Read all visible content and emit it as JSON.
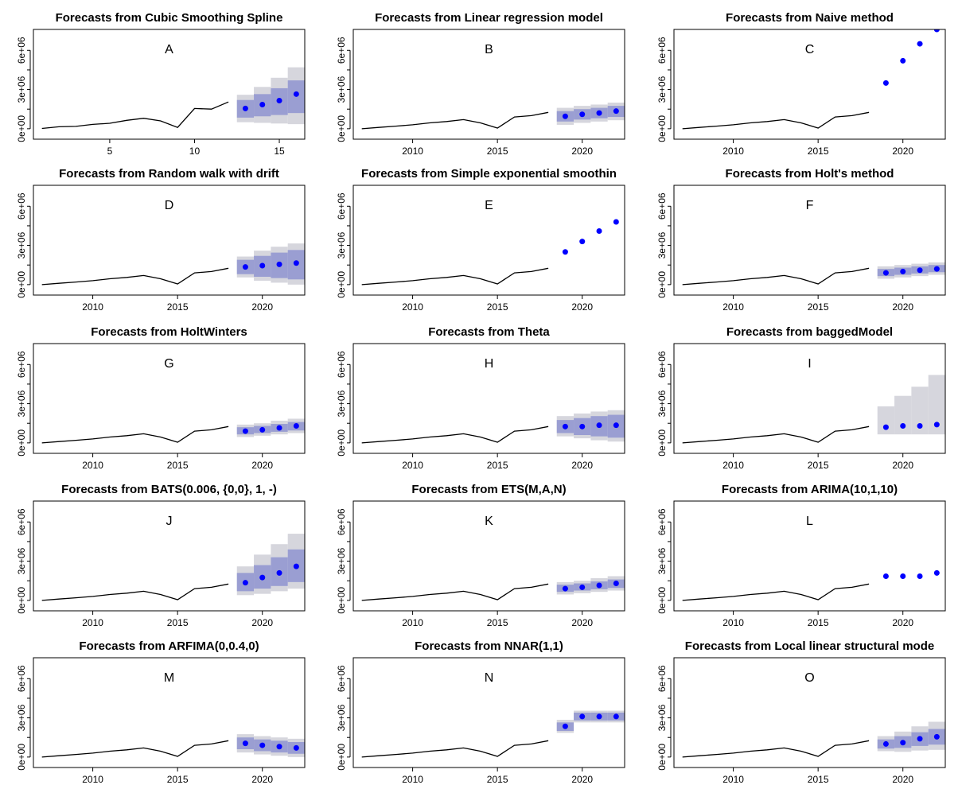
{
  "chart_data": [
    {
      "type": "line",
      "title": "Forecasts from Cubic Smoothing Spline",
      "label": "A",
      "xticks": [
        "5",
        "10",
        "15"
      ],
      "xlim": [
        0.5,
        16.5
      ],
      "history_x": [
        1,
        2,
        3,
        4,
        5,
        6,
        7,
        8,
        9,
        10,
        11,
        12
      ],
      "history_y": [
        20000,
        150000,
        180000,
        330000,
        420000,
        640000,
        800000,
        600000,
        100000,
        1550000,
        1500000,
        2050000
      ],
      "forecast_x": [
        13,
        14,
        15,
        16
      ],
      "point_forecast": [
        1550000,
        1850000,
        2150000,
        2650000
      ],
      "interval80": [
        [
          850000,
          2200000
        ],
        [
          950000,
          2650000
        ],
        [
          1050000,
          3100000
        ],
        [
          1200000,
          3700000
        ]
      ],
      "interval95": [
        [
          500000,
          2600000
        ],
        [
          450000,
          3200000
        ],
        [
          400000,
          3900000
        ],
        [
          350000,
          4700000
        ]
      ]
    },
    {
      "type": "line",
      "title": "Forecasts from Linear regression model",
      "label": "B",
      "xticks": [
        "2010",
        "2015",
        "2020"
      ],
      "xlim": [
        2006.5,
        2022.5
      ],
      "history_x": [
        2007,
        2008,
        2009,
        2010,
        2011,
        2012,
        2013,
        2014,
        2015,
        2016,
        2017,
        2018
      ],
      "history_y": [
        0,
        100000,
        200000,
        300000,
        450000,
        550000,
        700000,
        450000,
        50000,
        900000,
        1000000,
        1250000
      ],
      "forecast_x": [
        2019,
        2020,
        2021,
        2022
      ],
      "point_forecast": [
        950000,
        1100000,
        1200000,
        1350000
      ],
      "interval80": [
        [
          550000,
          1350000
        ],
        [
          700000,
          1500000
        ],
        [
          800000,
          1600000
        ],
        [
          900000,
          1750000
        ]
      ],
      "interval95": [
        [
          300000,
          1600000
        ],
        [
          450000,
          1750000
        ],
        [
          550000,
          1850000
        ],
        [
          650000,
          2000000
        ]
      ]
    },
    {
      "type": "line",
      "title": "Forecasts from Naive method",
      "label": "C",
      "xticks": [
        "2010",
        "2015",
        "2020"
      ],
      "xlim": [
        2006.5,
        2022.5
      ],
      "history_x": [
        2007,
        2008,
        2009,
        2010,
        2011,
        2012,
        2013,
        2014,
        2015,
        2016,
        2017,
        2018
      ],
      "history_y": [
        0,
        100000,
        200000,
        300000,
        450000,
        550000,
        700000,
        450000,
        50000,
        900000,
        1000000,
        1250000
      ],
      "forecast_x": [
        2019,
        2020,
        2021,
        2022
      ],
      "point_forecast": [
        3500000,
        5200000,
        6500000,
        7600000
      ],
      "interval80": [],
      "interval95": []
    },
    {
      "type": "line",
      "title": "Forecasts from Random walk with drift",
      "label": "D",
      "xticks": [
        "2010",
        "2015",
        "2020"
      ],
      "xlim": [
        2006.5,
        2022.5
      ],
      "history_x": [
        2007,
        2008,
        2009,
        2010,
        2011,
        2012,
        2013,
        2014,
        2015,
        2016,
        2017,
        2018
      ],
      "history_y": [
        0,
        100000,
        200000,
        300000,
        450000,
        550000,
        700000,
        450000,
        50000,
        900000,
        1000000,
        1250000
      ],
      "forecast_x": [
        2019,
        2020,
        2021,
        2022
      ],
      "point_forecast": [
        1350000,
        1450000,
        1550000,
        1650000
      ],
      "interval80": [
        [
          800000,
          1900000
        ],
        [
          600000,
          2200000
        ],
        [
          500000,
          2450000
        ],
        [
          400000,
          2650000
        ]
      ],
      "interval95": [
        [
          550000,
          2150000
        ],
        [
          300000,
          2600000
        ],
        [
          150000,
          2900000
        ],
        [
          0,
          3150000
        ]
      ]
    },
    {
      "type": "line",
      "title": "Forecasts from Simple exponential smoothin",
      "label": "E",
      "xticks": [
        "2010",
        "2015",
        "2020"
      ],
      "xlim": [
        2006.5,
        2022.5
      ],
      "history_x": [
        2007,
        2008,
        2009,
        2010,
        2011,
        2012,
        2013,
        2014,
        2015,
        2016,
        2017,
        2018
      ],
      "history_y": [
        0,
        100000,
        200000,
        300000,
        450000,
        550000,
        700000,
        450000,
        50000,
        900000,
        1000000,
        1250000
      ],
      "forecast_x": [
        2019,
        2020,
        2021,
        2022
      ],
      "point_forecast": [
        2500000,
        3300000,
        4100000,
        4800000
      ],
      "interval80": [],
      "interval95": []
    },
    {
      "type": "line",
      "title": "Forecasts from Holt's method",
      "label": "F",
      "xticks": [
        "2010",
        "2015",
        "2020"
      ],
      "xlim": [
        2006.5,
        2022.5
      ],
      "history_x": [
        2007,
        2008,
        2009,
        2010,
        2011,
        2012,
        2013,
        2014,
        2015,
        2016,
        2017,
        2018
      ],
      "history_y": [
        0,
        100000,
        200000,
        300000,
        450000,
        550000,
        700000,
        450000,
        50000,
        900000,
        1000000,
        1250000
      ],
      "forecast_x": [
        2019,
        2020,
        2021,
        2022
      ],
      "point_forecast": [
        900000,
        1000000,
        1100000,
        1200000
      ],
      "interval80": [
        [
          650000,
          1200000
        ],
        [
          750000,
          1300000
        ],
        [
          850000,
          1400000
        ],
        [
          950000,
          1500000
        ]
      ],
      "interval95": [
        [
          450000,
          1400000
        ],
        [
          550000,
          1500000
        ],
        [
          650000,
          1600000
        ],
        [
          750000,
          1700000
        ]
      ]
    },
    {
      "type": "line",
      "title": "Forecasts from HoltWinters",
      "label": "G",
      "xticks": [
        "2010",
        "2015",
        "2020"
      ],
      "xlim": [
        2006.5,
        2022.5
      ],
      "history_x": [
        2007,
        2008,
        2009,
        2010,
        2011,
        2012,
        2013,
        2014,
        2015,
        2016,
        2017,
        2018
      ],
      "history_y": [
        0,
        100000,
        200000,
        300000,
        450000,
        550000,
        700000,
        450000,
        50000,
        900000,
        1000000,
        1250000
      ],
      "forecast_x": [
        2019,
        2020,
        2021,
        2022
      ],
      "point_forecast": [
        900000,
        1000000,
        1150000,
        1300000
      ],
      "interval80": [
        [
          650000,
          1200000
        ],
        [
          750000,
          1300000
        ],
        [
          850000,
          1450000
        ],
        [
          950000,
          1600000
        ]
      ],
      "interval95": [
        [
          450000,
          1400000
        ],
        [
          550000,
          1500000
        ],
        [
          650000,
          1700000
        ],
        [
          750000,
          1850000
        ]
      ]
    },
    {
      "type": "line",
      "title": "Forecasts from Theta",
      "label": "H",
      "xticks": [
        "2010",
        "2015",
        "2020"
      ],
      "xlim": [
        2006.5,
        2022.5
      ],
      "history_x": [
        2007,
        2008,
        2009,
        2010,
        2011,
        2012,
        2013,
        2014,
        2015,
        2016,
        2017,
        2018
      ],
      "history_y": [
        0,
        100000,
        200000,
        300000,
        450000,
        550000,
        700000,
        450000,
        50000,
        900000,
        1000000,
        1250000
      ],
      "forecast_x": [
        2019,
        2020,
        2021,
        2022
      ],
      "point_forecast": [
        1250000,
        1250000,
        1350000,
        1350000
      ],
      "interval80": [
        [
          750000,
          1750000
        ],
        [
          600000,
          1900000
        ],
        [
          500000,
          2050000
        ],
        [
          400000,
          2150000
        ]
      ],
      "interval95": [
        [
          500000,
          2050000
        ],
        [
          350000,
          2250000
        ],
        [
          200000,
          2400000
        ],
        [
          100000,
          2500000
        ]
      ]
    },
    {
      "type": "line",
      "title": "Forecasts from baggedModel",
      "label": "I",
      "xticks": [
        "2010",
        "2015",
        "2020"
      ],
      "xlim": [
        2006.5,
        2022.5
      ],
      "history_x": [
        2007,
        2008,
        2009,
        2010,
        2011,
        2012,
        2013,
        2014,
        2015,
        2016,
        2017,
        2018
      ],
      "history_y": [
        0,
        100000,
        200000,
        300000,
        450000,
        550000,
        700000,
        450000,
        50000,
        900000,
        1000000,
        1250000
      ],
      "forecast_x": [
        2019,
        2020,
        2021,
        2022
      ],
      "point_forecast": [
        1200000,
        1300000,
        1300000,
        1400000
      ],
      "interval80": [],
      "interval95": [
        [
          650000,
          2800000
        ],
        [
          650000,
          3600000
        ],
        [
          650000,
          4300000
        ],
        [
          650000,
          5200000
        ]
      ]
    },
    {
      "type": "line",
      "title": "Forecasts from BATS(0.006, {0,0}, 1, -)",
      "label": "J",
      "xticks": [
        "2010",
        "2015",
        "2020"
      ],
      "xlim": [
        2006.5,
        2022.5
      ],
      "history_x": [
        2007,
        2008,
        2009,
        2010,
        2011,
        2012,
        2013,
        2014,
        2015,
        2016,
        2017,
        2018
      ],
      "history_y": [
        0,
        100000,
        200000,
        300000,
        450000,
        550000,
        700000,
        450000,
        50000,
        900000,
        1000000,
        1250000
      ],
      "forecast_x": [
        2019,
        2020,
        2021,
        2022
      ],
      "point_forecast": [
        1350000,
        1750000,
        2100000,
        2600000
      ],
      "interval80": [
        [
          700000,
          2100000
        ],
        [
          900000,
          2700000
        ],
        [
          1100000,
          3300000
        ],
        [
          1400000,
          3900000
        ]
      ],
      "interval95": [
        [
          400000,
          2600000
        ],
        [
          500000,
          3500000
        ],
        [
          700000,
          4300000
        ],
        [
          900000,
          5100000
        ]
      ]
    },
    {
      "type": "line",
      "title": "Forecasts from ETS(M,A,N)",
      "label": "K",
      "xticks": [
        "2010",
        "2015",
        "2020"
      ],
      "xlim": [
        2006.5,
        2022.5
      ],
      "history_x": [
        2007,
        2008,
        2009,
        2010,
        2011,
        2012,
        2013,
        2014,
        2015,
        2016,
        2017,
        2018
      ],
      "history_y": [
        0,
        100000,
        200000,
        300000,
        450000,
        550000,
        700000,
        450000,
        50000,
        900000,
        1000000,
        1250000
      ],
      "forecast_x": [
        2019,
        2020,
        2021,
        2022
      ],
      "point_forecast": [
        900000,
        1000000,
        1150000,
        1300000
      ],
      "interval80": [
        [
          650000,
          1200000
        ],
        [
          750000,
          1300000
        ],
        [
          850000,
          1450000
        ],
        [
          950000,
          1600000
        ]
      ],
      "interval95": [
        [
          450000,
          1400000
        ],
        [
          550000,
          1500000
        ],
        [
          650000,
          1700000
        ],
        [
          750000,
          1850000
        ]
      ]
    },
    {
      "type": "line",
      "title": "Forecasts from ARIMA(10,1,10)",
      "label": "L",
      "xticks": [
        "2010",
        "2015",
        "2020"
      ],
      "xlim": [
        2006.5,
        2022.5
      ],
      "history_x": [
        2007,
        2008,
        2009,
        2010,
        2011,
        2012,
        2013,
        2014,
        2015,
        2016,
        2017,
        2018
      ],
      "history_y": [
        0,
        100000,
        200000,
        300000,
        450000,
        550000,
        700000,
        450000,
        50000,
        900000,
        1000000,
        1250000
      ],
      "forecast_x": [
        2019,
        2020,
        2021,
        2022
      ],
      "point_forecast": [
        1850000,
        1850000,
        1850000,
        2100000
      ],
      "interval80": [],
      "interval95": []
    },
    {
      "type": "line",
      "title": "Forecasts from ARFIMA(0,0.4,0)",
      "label": "M",
      "xticks": [
        "2010",
        "2015",
        "2020"
      ],
      "xlim": [
        2006.5,
        2022.5
      ],
      "history_x": [
        2007,
        2008,
        2009,
        2010,
        2011,
        2012,
        2013,
        2014,
        2015,
        2016,
        2017,
        2018
      ],
      "history_y": [
        0,
        100000,
        200000,
        300000,
        450000,
        550000,
        700000,
        450000,
        50000,
        900000,
        1000000,
        1250000
      ],
      "forecast_x": [
        2019,
        2020,
        2021,
        2022
      ],
      "point_forecast": [
        1050000,
        900000,
        800000,
        700000
      ],
      "interval80": [
        [
          600000,
          1500000
        ],
        [
          450000,
          1350000
        ],
        [
          350000,
          1250000
        ],
        [
          250000,
          1150000
        ]
      ],
      "interval95": [
        [
          350000,
          1750000
        ],
        [
          200000,
          1600000
        ],
        [
          100000,
          1500000
        ],
        [
          0,
          1400000
        ]
      ]
    },
    {
      "type": "line",
      "title": "Forecasts from NNAR(1,1)",
      "label": "N",
      "xticks": [
        "2010",
        "2015",
        "2020"
      ],
      "xlim": [
        2006.5,
        2022.5
      ],
      "history_x": [
        2007,
        2008,
        2009,
        2010,
        2011,
        2012,
        2013,
        2014,
        2015,
        2016,
        2017,
        2018
      ],
      "history_y": [
        0,
        100000,
        200000,
        300000,
        450000,
        550000,
        700000,
        450000,
        50000,
        900000,
        1000000,
        1250000
      ],
      "forecast_x": [
        2019,
        2020,
        2021,
        2022
      ],
      "point_forecast": [
        2350000,
        3100000,
        3100000,
        3100000
      ],
      "interval80": [
        [
          2000000,
          2650000
        ],
        [
          2800000,
          3400000
        ],
        [
          2800000,
          3400000
        ],
        [
          2800000,
          3400000
        ]
      ],
      "interval95": [
        [
          1850000,
          2850000
        ],
        [
          2650000,
          3550000
        ],
        [
          2650000,
          3550000
        ],
        [
          2650000,
          3550000
        ]
      ]
    },
    {
      "type": "line",
      "title": "Forecasts from Local linear structural mode",
      "label": "O",
      "xticks": [
        "2010",
        "2015",
        "2020"
      ],
      "xlim": [
        2006.5,
        2022.5
      ],
      "history_x": [
        2007,
        2008,
        2009,
        2010,
        2011,
        2012,
        2013,
        2014,
        2015,
        2016,
        2017,
        2018
      ],
      "history_y": [
        0,
        100000,
        200000,
        300000,
        450000,
        550000,
        700000,
        450000,
        50000,
        900000,
        1000000,
        1250000
      ],
      "forecast_x": [
        2019,
        2020,
        2021,
        2022
      ],
      "point_forecast": [
        1000000,
        1100000,
        1400000,
        1550000
      ],
      "interval80": [
        [
          650000,
          1350000
        ],
        [
          700000,
          1600000
        ],
        [
          850000,
          1900000
        ],
        [
          950000,
          2150000
        ]
      ],
      "interval95": [
        [
          450000,
          1600000
        ],
        [
          400000,
          1950000
        ],
        [
          500000,
          2350000
        ],
        [
          550000,
          2700000
        ]
      ]
    }
  ],
  "shared": {
    "ylim": [
      -800000,
      7600000
    ],
    "yticks": [
      0,
      3000000,
      6000000
    ],
    "ytick_labels": [
      "0e+00",
      "3e+06",
      "6e+06"
    ],
    "colors": {
      "history": "#000000",
      "point_forecast": "#0000ff",
      "interval80": "#9a9ed2",
      "interval95": "#d6d6dd",
      "axes": "#000000"
    }
  }
}
